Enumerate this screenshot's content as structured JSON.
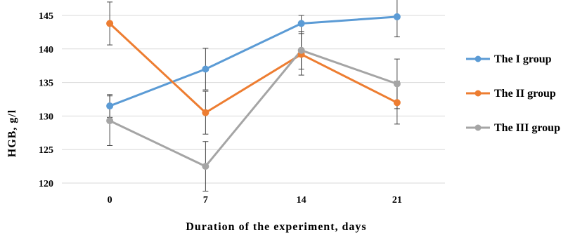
{
  "chart_data": {
    "type": "line",
    "title": "",
    "xlabel": "Duration of the experiment, days",
    "ylabel": "HGB, g/l",
    "categories": [
      "0",
      "7",
      "14",
      "21"
    ],
    "ylim": [
      120,
      145
    ],
    "yticks": [
      120,
      125,
      130,
      135,
      140,
      145
    ],
    "grid": "horizontal",
    "legend": "right",
    "series": [
      {
        "name": "The I group",
        "color": "#5b9bd5",
        "values": [
          131.5,
          137.0,
          143.8,
          144.8
        ],
        "error": [
          1.7,
          3.1,
          1.2,
          3.0
        ]
      },
      {
        "name": "The II group",
        "color": "#ed7d31",
        "values": [
          143.8,
          130.5,
          139.2,
          132.0
        ],
        "error": [
          3.2,
          3.2,
          3.1,
          3.2
        ]
      },
      {
        "name": "The III group",
        "color": "#a5a5a5",
        "values": [
          129.3,
          122.5,
          139.8,
          134.8
        ],
        "error": [
          3.7,
          3.7,
          2.8,
          3.7
        ]
      }
    ]
  }
}
